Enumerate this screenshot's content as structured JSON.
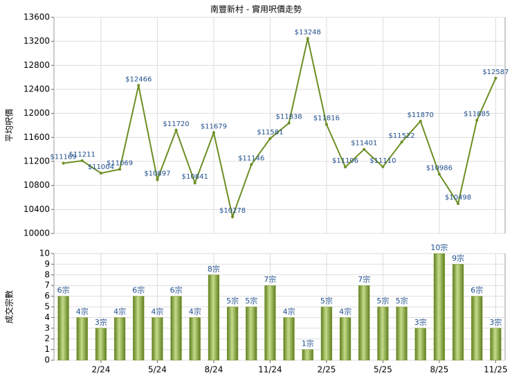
{
  "chart_data": [
    {
      "type": "line",
      "title": "南豐新村 - 實用呎價走勢",
      "y_label": "平均呎價",
      "values": [
        11169,
        11211,
        11004,
        11069,
        12466,
        10897,
        11720,
        10841,
        11679,
        10278,
        11146,
        11581,
        11838,
        13248,
        11816,
        11106,
        11401,
        11110,
        11522,
        11870,
        10986,
        10498,
        11885,
        12587
      ],
      "value_labels": [
        "$11169",
        "$11211",
        "$11004",
        "$11069",
        "$12466",
        "$10897",
        "$11720",
        "$10841",
        "$11679",
        "$10278",
        "$11146",
        "$11581",
        "$11838",
        "$13248",
        "$11816",
        "$11106",
        "$11401",
        "$11110",
        "$11522",
        "$11870",
        "$10986",
        "$10498",
        "$11885",
        "$12587"
      ],
      "color": "#6b8e23",
      "ylim": [
        10000,
        13600
      ],
      "yticks": [
        10000,
        10400,
        10800,
        11200,
        11600,
        12000,
        12400,
        12800,
        13200,
        13600
      ],
      "grid": true
    },
    {
      "type": "bar",
      "y_label": "成交宗數",
      "categories": [
        null,
        null,
        "2/24",
        null,
        null,
        "5/24",
        null,
        null,
        "8/24",
        null,
        null,
        "11/24",
        null,
        null,
        "2/25",
        null,
        null,
        "5/25",
        null,
        null,
        "8/25",
        null,
        null,
        "11/25"
      ],
      "values": [
        6,
        4,
        3,
        4,
        6,
        4,
        6,
        4,
        8,
        5,
        5,
        7,
        4,
        1,
        5,
        4,
        7,
        5,
        5,
        3,
        10,
        9,
        6,
        3
      ],
      "value_labels": [
        "6宗",
        "4宗",
        "3宗",
        "4宗",
        "6宗",
        "4宗",
        "6宗",
        "4宗",
        "8宗",
        "5宗",
        "5宗",
        "7宗",
        "4宗",
        "1宗",
        "5宗",
        "4宗",
        "7宗",
        "5宗",
        "5宗",
        "3宗",
        "10宗",
        "9宗",
        "6宗",
        "3宗"
      ],
      "color": "#7a9a2e",
      "ylim": [
        0,
        10
      ],
      "yticks": [
        0,
        1,
        2,
        3,
        4,
        5,
        6,
        7,
        8,
        9,
        10
      ],
      "grid": true
    }
  ]
}
